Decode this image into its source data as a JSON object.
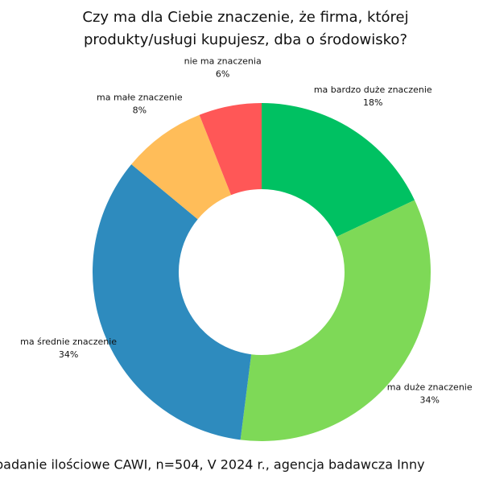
{
  "chart_data": {
    "type": "donut",
    "title": [
      "Czy ma dla Ciebie znaczenie, że firma, której",
      "produkty/usługi kupujesz, dba o środowisko?"
    ],
    "categories": [
      "ma bardzo duże znaczenie",
      "ma duże znaczenie",
      "ma średnie znaczenie",
      "ma małe znaczenie",
      "nie ma znaczenia"
    ],
    "values": [
      18,
      34,
      34,
      8,
      6
    ],
    "value_labels": [
      "18%",
      "34%",
      "34%",
      "8%",
      "6%"
    ],
    "colors": [
      "#00c162",
      "#7ed957",
      "#2e8bbe",
      "#ffbd59",
      "#ff5757"
    ],
    "source": "badanie ilościowe CAWI, n=504, V 2024 r., agencja badawcza Inny"
  }
}
